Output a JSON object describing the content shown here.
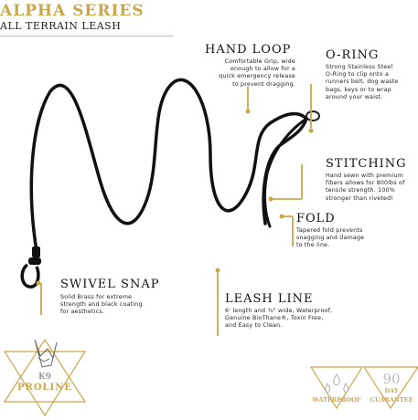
{
  "header": {
    "title": "ALPHA SERIES",
    "subtitle": "ALL TERRAIN LEASH"
  },
  "features": {
    "hand_loop": {
      "title": "HAND LOOP",
      "lines": [
        "Comfortable Grip, wide",
        "enough to allow for a",
        "quick emergency release",
        "to prevent dragging."
      ]
    },
    "o_ring": {
      "title": "O-RING",
      "lines": [
        "Strong Stainless Steel",
        "O-Ring to clip onto a",
        "runners belt, dog waste",
        "bags, keys or to wrap",
        "around your waist."
      ]
    },
    "stitching": {
      "title": "STITCHING",
      "lines": [
        "Hand sewn with premium",
        "fibers allows for 800lbs of",
        "tensile strength. 100%",
        "stronger than riveted!"
      ]
    },
    "fold": {
      "title": "FOLD",
      "lines": [
        "Tapered fold prevents",
        "snagging and damage",
        "to the line."
      ]
    },
    "swivel_snap": {
      "title": "SWIVEL SNAP",
      "lines": [
        "Solid Brass for extreme",
        "strength and black coating",
        "for aesthetics."
      ]
    },
    "leash_line": {
      "title": "LEASH LINE",
      "lines": [
        "6' length and ¾\" wide, Waterproof,",
        "Genuine BioThane®, Toxin Free,",
        "and Easy to Clean."
      ]
    }
  },
  "logo": {
    "top": "K9",
    "bottom": "PROLINE"
  },
  "badges": {
    "waterproof": "WATERPROOF",
    "guarantee_number": "90",
    "guarantee_day": "DAY",
    "guarantee_label": "GUARANTEE"
  },
  "colors": {
    "gold": "#c9a84a",
    "leash": "#111111"
  }
}
